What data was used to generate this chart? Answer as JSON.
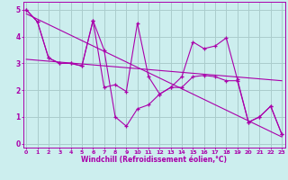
{
  "xlabel": "Windchill (Refroidissement éolien,°C)",
  "bg_color": "#cceeee",
  "grid_color": "#aacccc",
  "line_color": "#aa00aa",
  "xticks": [
    0,
    1,
    2,
    3,
    4,
    5,
    6,
    7,
    8,
    9,
    10,
    11,
    12,
    13,
    14,
    15,
    16,
    17,
    18,
    19,
    20,
    21,
    22,
    23
  ],
  "yticks": [
    0,
    1,
    2,
    3,
    4,
    5
  ],
  "ylim": [
    -0.15,
    5.3
  ],
  "xlim": [
    -0.3,
    23.3
  ],
  "series1_x": [
    0,
    1,
    2,
    3,
    4,
    5,
    6,
    7,
    8,
    9,
    10,
    11,
    12,
    13,
    14,
    15,
    16,
    17,
    18,
    19,
    20,
    21,
    22,
    23
  ],
  "series1_y": [
    5.0,
    4.55,
    3.2,
    3.0,
    3.0,
    2.9,
    4.6,
    3.5,
    1.0,
    0.65,
    1.3,
    1.45,
    1.85,
    2.1,
    2.5,
    3.8,
    3.55,
    3.65,
    3.95,
    2.4,
    0.8,
    1.0,
    1.4,
    0.35
  ],
  "series2_x": [
    0,
    1,
    2,
    3,
    4,
    5,
    6,
    7,
    8,
    9,
    10,
    11,
    12,
    13,
    14,
    15,
    16,
    17,
    18,
    19,
    20,
    21,
    22,
    23
  ],
  "series2_y": [
    5.0,
    4.55,
    3.2,
    3.0,
    3.0,
    2.9,
    4.6,
    2.1,
    2.2,
    1.95,
    4.5,
    2.5,
    1.85,
    2.1,
    2.1,
    2.5,
    2.55,
    2.5,
    2.35,
    2.35,
    0.8,
    1.0,
    1.4,
    0.35
  ],
  "trend1_x": [
    0,
    23
  ],
  "trend1_y": [
    4.85,
    0.25
  ],
  "trend2_x": [
    0,
    23
  ],
  "trend2_y": [
    3.15,
    2.35
  ]
}
